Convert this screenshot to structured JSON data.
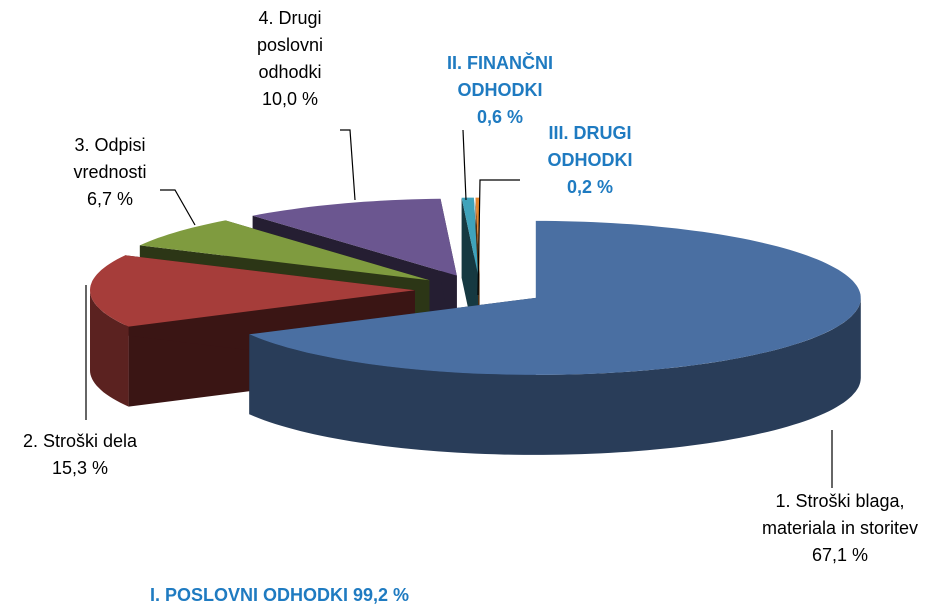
{
  "chart_data": {
    "type": "pie",
    "categories": [
      "1. Stroški blaga, materiala in storitev",
      "2. Stroški dela",
      "3. Odpisi vrednosti",
      "4. Drugi poslovni odhodki",
      "II. FINANČNI ODHODKI",
      "III. DRUGI ODHODKI"
    ],
    "values": [
      67.1,
      15.3,
      6.7,
      10.0,
      0.6,
      0.2
    ],
    "value_labels": [
      "67,1 %",
      "15,3 %",
      "6,7 %",
      "10,0 %",
      "0,6 %",
      "0,2 %"
    ],
    "colors": [
      "#4a6fa2",
      "#a63d3a",
      "#7f9b3f",
      "#6b5690",
      "#3fa3bb",
      "#e3852f"
    ],
    "label_colors": [
      "#000000",
      "#000000",
      "#000000",
      "#000000",
      "#1f7bc1",
      "#1f7bc1"
    ],
    "annotations": [
      {
        "text": "I. POSLOVNI ODHODKI 99,2 %",
        "color": "#1f7bc1"
      }
    ]
  }
}
